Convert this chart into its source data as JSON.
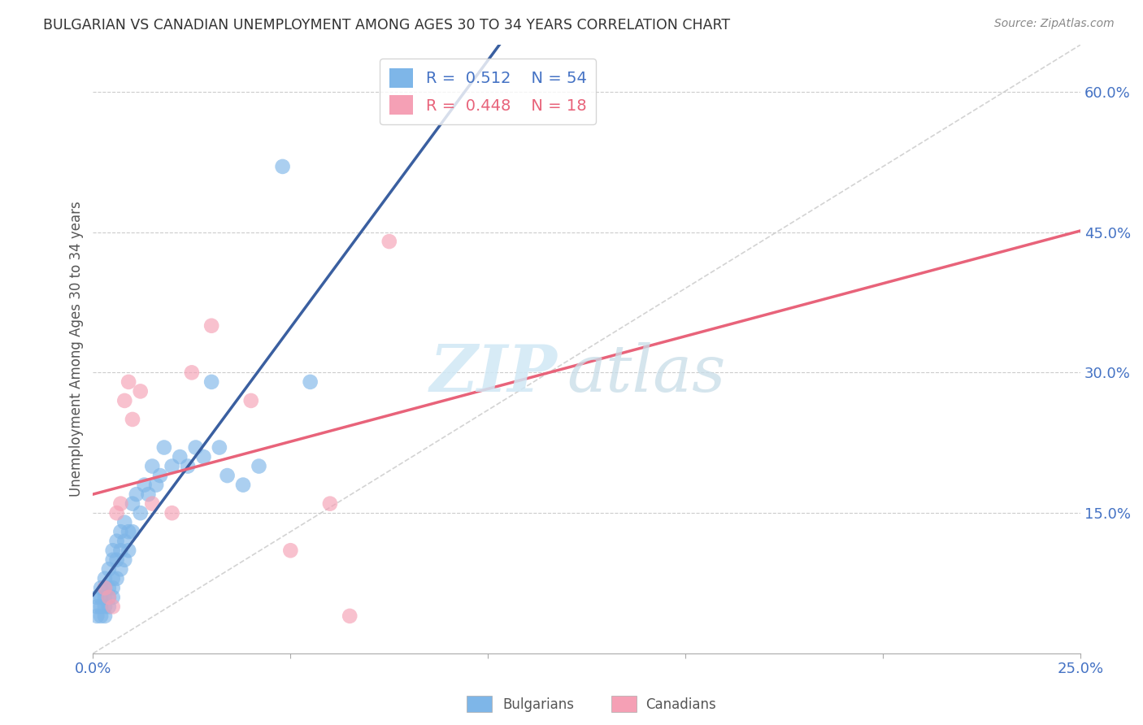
{
  "title": "BULGARIAN VS CANADIAN UNEMPLOYMENT AMONG AGES 30 TO 34 YEARS CORRELATION CHART",
  "source": "Source: ZipAtlas.com",
  "ylabel": "Unemployment Among Ages 30 to 34 years",
  "xlabel": "",
  "xlim": [
    0.0,
    0.25
  ],
  "ylim": [
    0.0,
    0.65
  ],
  "xticks": [
    0.0,
    0.05,
    0.1,
    0.15,
    0.2,
    0.25
  ],
  "xticklabels": [
    "0.0%",
    "",
    "",
    "",
    "",
    "25.0%"
  ],
  "yticks_right": [
    0.15,
    0.3,
    0.45,
    0.6
  ],
  "ytick_right_labels": [
    "15.0%",
    "30.0%",
    "45.0%",
    "60.0%"
  ],
  "bulgarian_color": "#7EB6E8",
  "canadian_color": "#F5A0B5",
  "bulgarian_line_color": "#3A5FA0",
  "canadian_line_color": "#E8637A",
  "diagonal_color": "#CCCCCC",
  "R_bulgarian": 0.512,
  "N_bulgarian": 54,
  "R_canadian": 0.448,
  "N_canadian": 18,
  "watermark_zip": "ZIP",
  "watermark_atlas": "atlas",
  "bulgarian_x": [
    0.001,
    0.001,
    0.001,
    0.002,
    0.002,
    0.002,
    0.002,
    0.003,
    0.003,
    0.003,
    0.003,
    0.003,
    0.004,
    0.004,
    0.004,
    0.004,
    0.005,
    0.005,
    0.005,
    0.005,
    0.005,
    0.006,
    0.006,
    0.006,
    0.007,
    0.007,
    0.007,
    0.008,
    0.008,
    0.008,
    0.009,
    0.009,
    0.01,
    0.01,
    0.011,
    0.012,
    0.013,
    0.014,
    0.015,
    0.016,
    0.017,
    0.018,
    0.02,
    0.022,
    0.024,
    0.026,
    0.028,
    0.03,
    0.032,
    0.034,
    0.038,
    0.042,
    0.048,
    0.055
  ],
  "bulgarian_y": [
    0.04,
    0.05,
    0.06,
    0.04,
    0.05,
    0.06,
    0.07,
    0.04,
    0.05,
    0.06,
    0.07,
    0.08,
    0.05,
    0.06,
    0.07,
    0.09,
    0.06,
    0.07,
    0.08,
    0.1,
    0.11,
    0.08,
    0.1,
    0.12,
    0.09,
    0.11,
    0.13,
    0.1,
    0.12,
    0.14,
    0.11,
    0.13,
    0.13,
    0.16,
    0.17,
    0.15,
    0.18,
    0.17,
    0.2,
    0.18,
    0.19,
    0.22,
    0.2,
    0.21,
    0.2,
    0.22,
    0.21,
    0.29,
    0.22,
    0.19,
    0.18,
    0.2,
    0.52,
    0.29
  ],
  "canadian_x": [
    0.003,
    0.004,
    0.005,
    0.006,
    0.007,
    0.008,
    0.009,
    0.01,
    0.012,
    0.015,
    0.02,
    0.025,
    0.03,
    0.04,
    0.05,
    0.06,
    0.065,
    0.075
  ],
  "canadian_y": [
    0.07,
    0.06,
    0.05,
    0.15,
    0.16,
    0.27,
    0.29,
    0.25,
    0.28,
    0.16,
    0.15,
    0.3,
    0.35,
    0.27,
    0.11,
    0.16,
    0.04,
    0.44
  ]
}
